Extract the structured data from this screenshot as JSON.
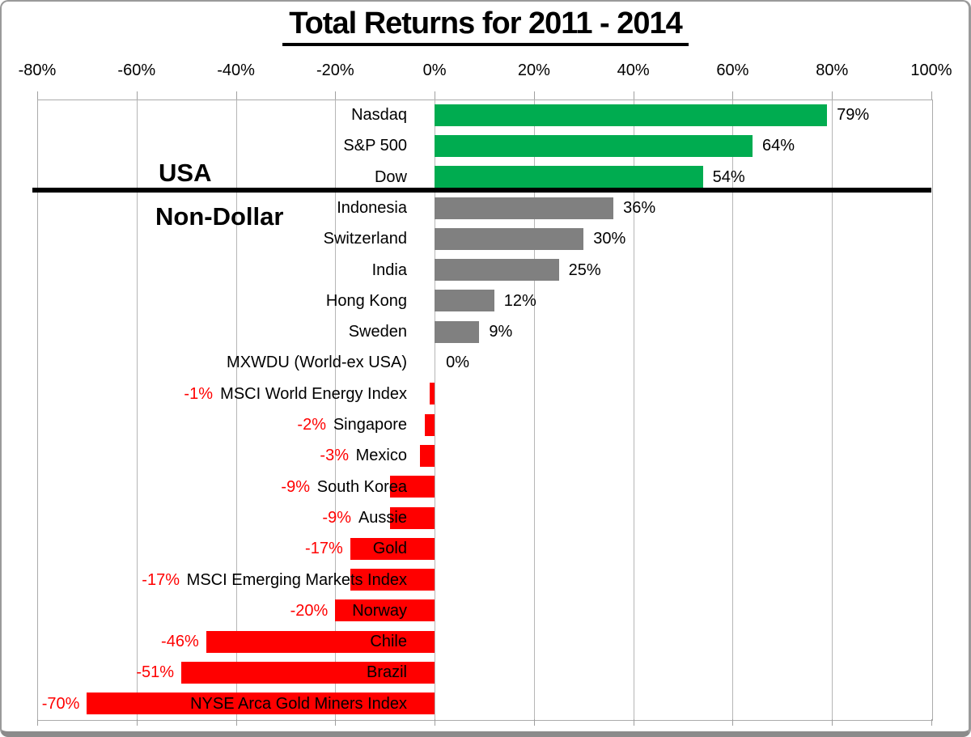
{
  "sections": {
    "usa_label": "USA",
    "non_dollar_label": "Non-Dollar",
    "separator_after_row": 3
  },
  "colors": {
    "usa_bar": "#00AC50",
    "non_dollar_bar": "#808080",
    "negative_bar": "#FF0000",
    "value_text": "#000000",
    "negative_value_text": "#FF0000",
    "gridline": "#B6B6B6",
    "separator": "#000000"
  },
  "chart_data": {
    "type": "bar",
    "orientation": "horizontal",
    "title": "Total Returns for 2011 - 2014",
    "xlabel": "",
    "ylabel": "",
    "grid": true,
    "legend": false,
    "x_axis": {
      "min": -80,
      "max": 100,
      "tick_step": 20,
      "ticks": [
        {
          "value": -80,
          "label": "-80%"
        },
        {
          "value": -60,
          "label": "-60%"
        },
        {
          "value": -40,
          "label": "-40%"
        },
        {
          "value": -20,
          "label": "-20%"
        },
        {
          "value": 0,
          "label": "0%"
        },
        {
          "value": 20,
          "label": "20%"
        },
        {
          "value": 40,
          "label": "40%"
        },
        {
          "value": 60,
          "label": "60%"
        },
        {
          "value": 80,
          "label": "80%"
        },
        {
          "value": 100,
          "label": "100%"
        }
      ]
    },
    "rows": [
      {
        "label": "Nasdaq",
        "value": 79,
        "display": "79%",
        "group": "USA",
        "color": "#00AC50"
      },
      {
        "label": "S&P 500",
        "value": 64,
        "display": "64%",
        "group": "USA",
        "color": "#00AC50"
      },
      {
        "label": "Dow",
        "value": 54,
        "display": "54%",
        "group": "USA",
        "color": "#00AC50"
      },
      {
        "label": "Indonesia",
        "value": 36,
        "display": "36%",
        "group": "Non-Dollar",
        "color": "#808080"
      },
      {
        "label": "Switzerland",
        "value": 30,
        "display": "30%",
        "group": "Non-Dollar",
        "color": "#808080"
      },
      {
        "label": "India",
        "value": 25,
        "display": "25%",
        "group": "Non-Dollar",
        "color": "#808080"
      },
      {
        "label": "Hong Kong",
        "value": 12,
        "display": "12%",
        "group": "Non-Dollar",
        "color": "#808080"
      },
      {
        "label": "Sweden",
        "value": 9,
        "display": "9%",
        "group": "Non-Dollar",
        "color": "#808080"
      },
      {
        "label": "MXWDU (World-ex USA)",
        "value": 0,
        "display": "0%",
        "group": "Non-Dollar",
        "color": "#808080"
      },
      {
        "label": "MSCI World Energy Index",
        "value": -1,
        "display": "-1%",
        "group": "Non-Dollar",
        "color": "#FF0000"
      },
      {
        "label": "Singapore",
        "value": -2,
        "display": "-2%",
        "group": "Non-Dollar",
        "color": "#FF0000"
      },
      {
        "label": "Mexico",
        "value": -3,
        "display": "-3%",
        "group": "Non-Dollar",
        "color": "#FF0000"
      },
      {
        "label": "South Korea",
        "value": -9,
        "display": "-9%",
        "group": "Non-Dollar",
        "color": "#FF0000"
      },
      {
        "label": "Aussie",
        "value": -9,
        "display": "-9%",
        "group": "Non-Dollar",
        "color": "#FF0000"
      },
      {
        "label": "Gold",
        "value": -17,
        "display": "-17%",
        "group": "Non-Dollar",
        "color": "#FF0000"
      },
      {
        "label": "MSCI Emerging Markets Index",
        "value": -17,
        "display": "-17%",
        "group": "Non-Dollar",
        "color": "#FF0000"
      },
      {
        "label": "Norway",
        "value": -20,
        "display": "-20%",
        "group": "Non-Dollar",
        "color": "#FF0000"
      },
      {
        "label": "Chile",
        "value": -46,
        "display": "-46%",
        "group": "Non-Dollar",
        "color": "#FF0000"
      },
      {
        "label": "Brazil",
        "value": -51,
        "display": "-51%",
        "group": "Non-Dollar",
        "color": "#FF0000"
      },
      {
        "label": "NYSE Arca Gold Miners Index",
        "value": -70,
        "display": "-70%",
        "group": "Non-Dollar",
        "color": "#FF0000"
      }
    ]
  }
}
